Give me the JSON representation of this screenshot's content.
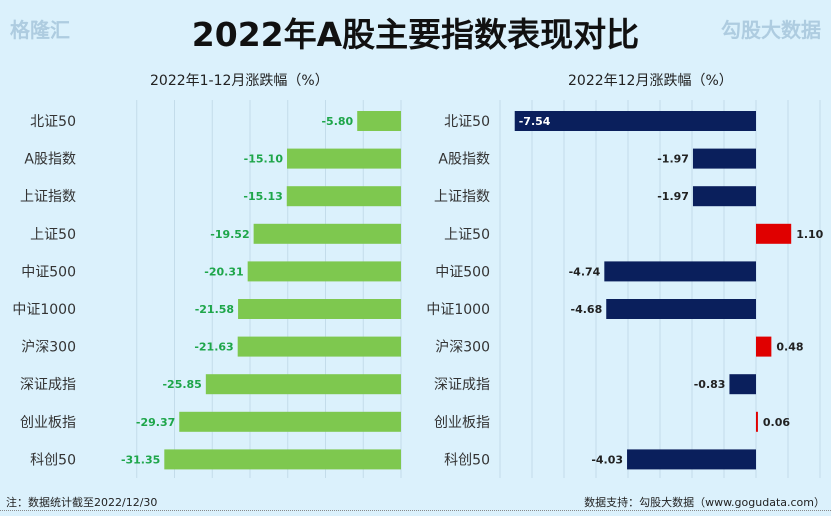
{
  "title": "2022年A股主要指数表现对比",
  "footer": {
    "note": "注：数据统计截至2022/12/30",
    "source": "数据支持：勾股大数据（www.gogudata.com）",
    "logo": "格隆汇"
  },
  "watermarks": [
    "格隆汇",
    "勾股大数据"
  ],
  "chart_data": [
    {
      "type": "bar",
      "orientation": "horizontal",
      "title": "2022年1-12月涨跌幅（%）",
      "categories": [
        "北证50",
        "A股指数",
        "上证指数",
        "上证50",
        "中证500",
        "中证1000",
        "沪深300",
        "深证成指",
        "创业板指",
        "科创50"
      ],
      "values": [
        -5.8,
        -15.1,
        -15.13,
        -19.52,
        -20.31,
        -21.58,
        -21.63,
        -25.85,
        -29.37,
        -31.35
      ],
      "xlim": [
        -35,
        0
      ],
      "grid": true,
      "colors": {
        "bar": "#7ec84f",
        "label": "#1ea64a"
      }
    },
    {
      "type": "bar",
      "orientation": "horizontal",
      "title": "2022年12月涨跌幅（%）",
      "categories": [
        "北证50",
        "A股指数",
        "上证指数",
        "上证50",
        "中证500",
        "中证1000",
        "沪深300",
        "深证成指",
        "创业板指",
        "科创50"
      ],
      "values": [
        -7.54,
        -1.97,
        -1.97,
        1.1,
        -4.74,
        -4.68,
        0.48,
        -0.83,
        0.06,
        -4.03
      ],
      "xlim": [
        -8,
        2
      ],
      "grid": true,
      "colors": {
        "negative": "#0a1f5c",
        "positive": "#e00000",
        "label": "#222"
      }
    }
  ]
}
